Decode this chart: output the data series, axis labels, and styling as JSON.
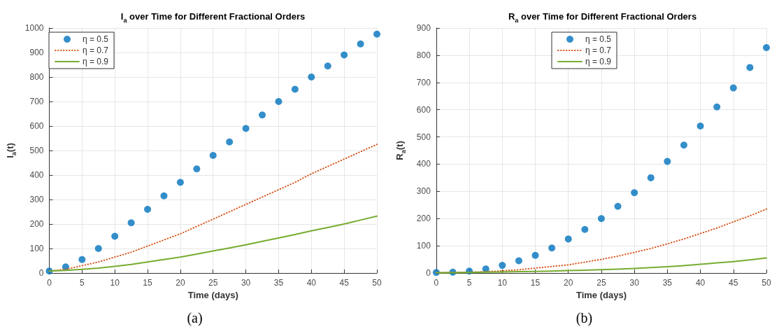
{
  "chart_data": [
    {
      "type": "line",
      "title": "I$_{a}$ over Time for Different Fractional Orders",
      "xlabel": "Time (days)",
      "ylabel": "I$_{a}$(t)",
      "annotations": [
        "(a)"
      ],
      "x": [
        0,
        2.5,
        5,
        7.5,
        10,
        12.5,
        15,
        17.5,
        20,
        22.5,
        25,
        27.5,
        30,
        32.5,
        35,
        37.5,
        40,
        42.5,
        45,
        47.5,
        50
      ],
      "xlim": [
        0,
        50
      ],
      "xticks": [
        0,
        5,
        10,
        15,
        20,
        25,
        30,
        35,
        40,
        45,
        50
      ],
      "ylim": [
        0,
        1000
      ],
      "yticks": [
        0,
        100,
        200,
        300,
        400,
        500,
        600,
        700,
        800,
        900,
        1000
      ],
      "grid": true,
      "legend": "top left",
      "series": [
        {
          "name": "η = 0.5",
          "type": "scatter",
          "marker": "circle",
          "color": "#0072bd",
          "values": [
            8,
            25,
            55,
            100,
            150,
            205,
            260,
            315,
            370,
            425,
            480,
            535,
            590,
            645,
            700,
            750,
            800,
            845,
            890,
            935,
            975
          ]
        },
        {
          "name": "η = 0.7",
          "marker": "none",
          "line_style": "dotted",
          "color": "#d95319",
          "values": [
            8,
            15,
            30,
            45,
            65,
            85,
            110,
            135,
            160,
            190,
            220,
            250,
            280,
            310,
            340,
            370,
            405,
            435,
            465,
            495,
            525
          ]
        },
        {
          "name": "η = 0.9",
          "marker": "none",
          "line_style": "solid",
          "color": "#77ac30",
          "values": [
            8,
            11,
            15,
            20,
            27,
            35,
            45,
            55,
            65,
            77,
            90,
            102,
            115,
            129,
            143,
            157,
            172,
            186,
            200,
            216,
            232
          ]
        }
      ]
    },
    {
      "type": "line",
      "title": "R$_{a}$ over Time for Different Fractional Orders",
      "xlabel": "Time (days)",
      "ylabel": "R$_{a}$(t)",
      "annotations": [
        "(b)"
      ],
      "x": [
        0,
        2.5,
        5,
        7.5,
        10,
        12.5,
        15,
        17.5,
        20,
        22.5,
        25,
        27.5,
        30,
        32.5,
        35,
        37.5,
        40,
        42.5,
        45,
        47.5,
        50
      ],
      "xlim": [
        0,
        50
      ],
      "xticks": [
        0,
        5,
        10,
        15,
        20,
        25,
        30,
        35,
        40,
        45,
        50
      ],
      "ylim": [
        0,
        900
      ],
      "yticks": [
        0,
        100,
        200,
        300,
        400,
        500,
        600,
        700,
        800,
        900
      ],
      "grid": true,
      "legend": "top",
      "series": [
        {
          "name": "η = 0.5",
          "type": "scatter",
          "marker": "circle",
          "color": "#0072bd",
          "values": [
            2,
            3,
            7,
            15,
            28,
            45,
            65,
            92,
            125,
            160,
            200,
            245,
            295,
            350,
            410,
            470,
            540,
            610,
            680,
            755,
            828
          ]
        },
        {
          "name": "η = 0.7",
          "marker": "none",
          "line_style": "dotted",
          "color": "#d95319",
          "values": [
            1,
            2,
            3,
            5,
            8,
            12,
            18,
            24,
            30,
            40,
            50,
            62,
            76,
            90,
            107,
            125,
            145,
            165,
            188,
            210,
            235
          ]
        },
        {
          "name": "η = 0.9",
          "marker": "none",
          "line_style": "solid",
          "color": "#77ac30",
          "values": [
            1,
            1,
            2,
            3,
            4,
            5,
            6,
            7,
            9,
            10,
            12,
            14,
            17,
            20,
            23,
            27,
            32,
            37,
            42,
            48,
            55
          ]
        }
      ]
    }
  ]
}
